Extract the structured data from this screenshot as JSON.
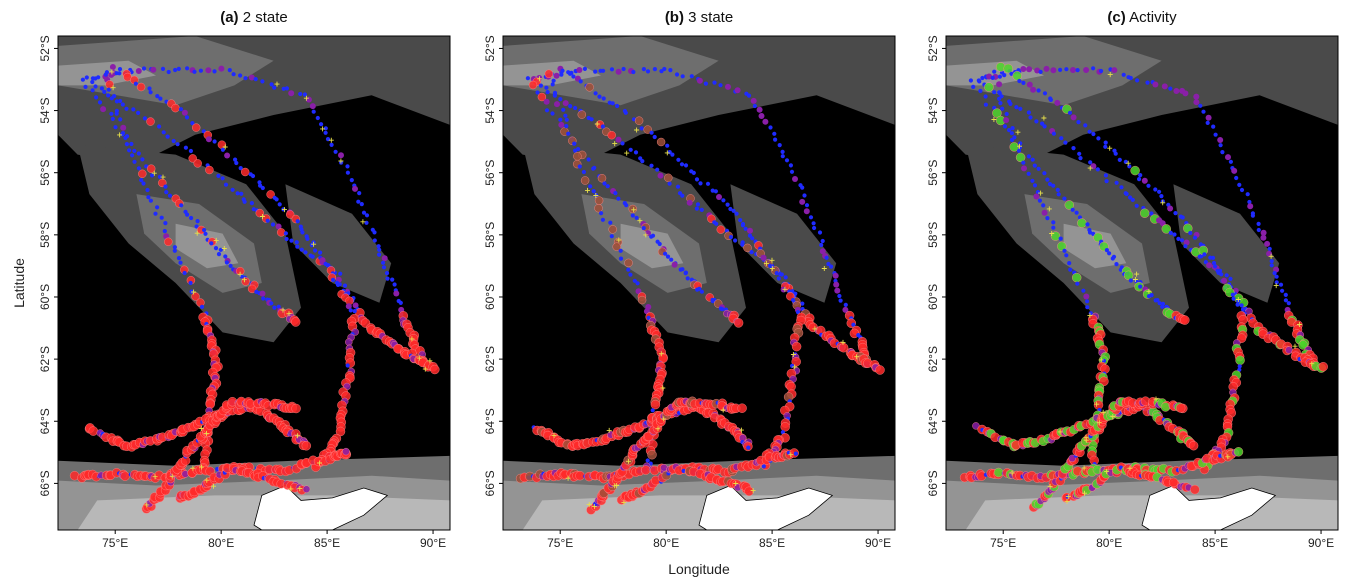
{
  "figure": {
    "y_axis_label": "Latitude",
    "x_axis_label": "Longitude"
  },
  "panels": [
    {
      "letter": "(a)",
      "label": "2 state"
    },
    {
      "letter": "(b)",
      "label": "3 state"
    },
    {
      "letter": "(c)",
      "label": "Activity"
    }
  ],
  "map": {
    "lon_ticks": [
      {
        "value": 75,
        "label": "75°E"
      },
      {
        "value": 80,
        "label": "80°E"
      },
      {
        "value": 85,
        "label": "85°E"
      },
      {
        "value": 90,
        "label": "90°E"
      }
    ],
    "lat_ticks": [
      {
        "value": -52,
        "label": "52°S"
      },
      {
        "value": -54,
        "label": "54°S"
      },
      {
        "value": -56,
        "label": "56°S"
      },
      {
        "value": -58,
        "label": "58°S"
      },
      {
        "value": -60,
        "label": "60°S"
      },
      {
        "value": -62,
        "label": "62°S"
      },
      {
        "value": -64,
        "label": "64°S"
      },
      {
        "value": -66,
        "label": "66°S"
      }
    ],
    "lon_range": [
      72.3,
      90.8
    ],
    "lat_range": [
      -67.5,
      -51.6
    ],
    "colors": {
      "deep_ocean": "#000000",
      "bathymetry_shades": [
        "#2b2b2b",
        "#4a4a4a",
        "#6e6e6e",
        "#949494",
        "#b8b8b8"
      ],
      "land": "#ffffff",
      "track_blue": "#1f2bff",
      "state_red": "#ff2a2a",
      "state_purple": "#8a1fa8",
      "state_green": "#4dd62b",
      "plus_markers": "#e7e04a"
    }
  }
}
